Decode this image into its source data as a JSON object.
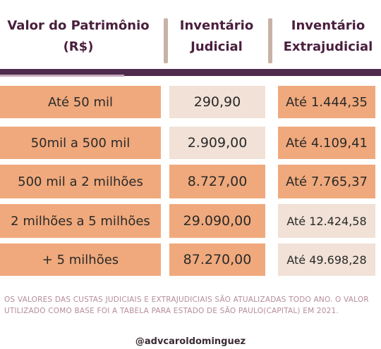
{
  "header": {
    "col1": [
      "Valor do Patrimônio",
      "(R$)"
    ],
    "col2": [
      "Inventário",
      "Judicial"
    ],
    "col3": [
      "Inventário",
      "Extrajudicial"
    ]
  },
  "rows": [
    {
      "range": "Até 50 mil",
      "judicial": "290,90",
      "extrajudicial": "Até 1.444,35"
    },
    {
      "range": "50mil  a 500 mil",
      "judicial": "2.909,00",
      "extrajudicial": "Até 4.109,41"
    },
    {
      "range": "500 mil  a 2 milhões",
      "judicial": "8.727,00",
      "extrajudicial": "Até 7.765,37"
    },
    {
      "range": "2 milhões a 5 milhões",
      "judicial": "29.090,00",
      "extrajudicial": "Até 12.424,58"
    },
    {
      "range": "+ 5 milhões",
      "judicial": "87.270,00",
      "extrajudicial": "Até 49.698,28"
    }
  ],
  "footnote": "OS VALORES DAS CUSTAS JUDICIAIS E EXTRAJUDICIAIS  SÃO ATUALIZADAS TODO ANO. O VALOR UTILIZADO COMO BASE FOI A TABELA PARA ESTADO DE SÃO PAULO(CAPITAL) EM 2021.",
  "handle": "@advcaroldominguez",
  "colors": {
    "header_text": "#4a1f3d",
    "header_bar": "#4e2a4c",
    "orange_cell": "#f0a97c",
    "pale_cell": "#f1e1d6",
    "footnote_text": "#b58c9c"
  }
}
